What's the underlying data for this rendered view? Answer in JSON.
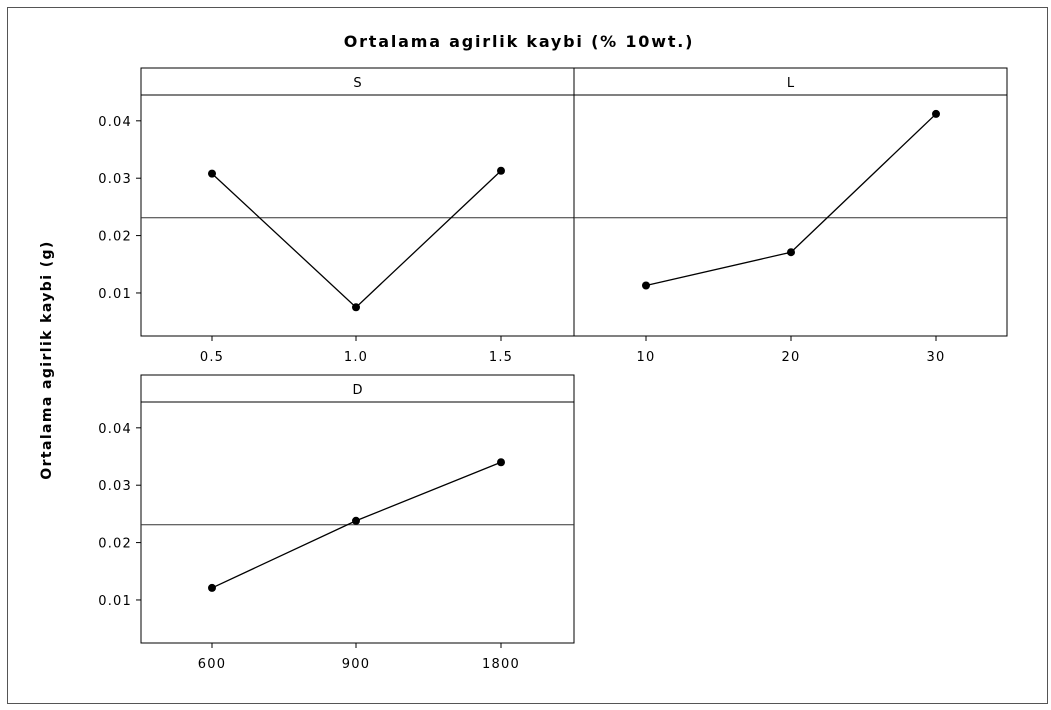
{
  "chart_data": {
    "type": "line",
    "title": "Ortalama agirlik kaybi (% 10wt.)",
    "ylabel": "Ortalama agirlik kaybi (g)",
    "ylim": [
      0.0025,
      0.0445
    ],
    "yticks": [
      0.01,
      0.02,
      0.03,
      0.04
    ],
    "ytick_labels": [
      "0.01",
      "0.02",
      "0.03",
      "0.04"
    ],
    "reference_mean": 0.0231,
    "grid": false,
    "panels": [
      {
        "name": "S",
        "categories": [
          "0.5",
          "1.0",
          "1.5"
        ],
        "values": [
          0.0308,
          0.0075,
          0.0313
        ]
      },
      {
        "name": "L",
        "categories": [
          "10",
          "20",
          "30"
        ],
        "values": [
          0.0113,
          0.0171,
          0.0412
        ]
      },
      {
        "name": "D",
        "categories": [
          "600",
          "900",
          "1800"
        ],
        "values": [
          0.0121,
          0.0238,
          0.034
        ]
      }
    ]
  }
}
